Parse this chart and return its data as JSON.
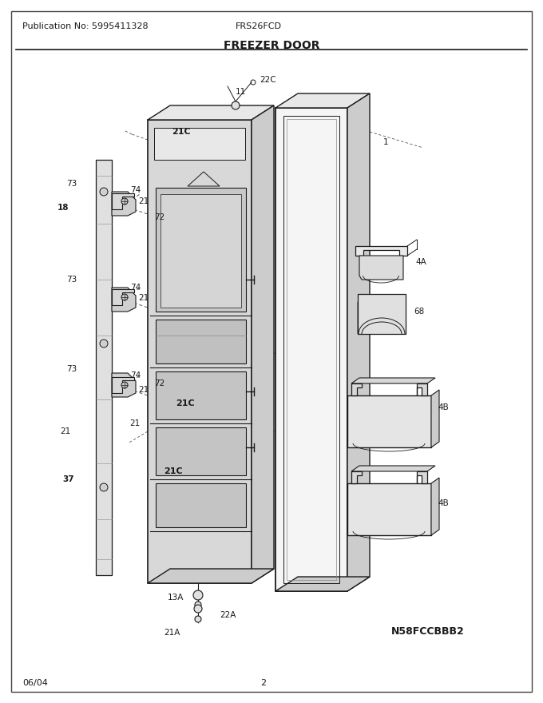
{
  "title": "FREEZER DOOR",
  "pub_no": "Publication No: 5995411328",
  "model": "FRS26FCD",
  "date": "06/04",
  "page": "2",
  "diagram_id": "N58FCCBBB2",
  "bg_color": "#ffffff",
  "lc": "#1a1a1a",
  "gray_light": "#e8e8e8",
  "gray_mid": "#cccccc",
  "gray_dark": "#aaaaaa",
  "gray_fill": "#d8d8d8",
  "white_fill": "#f5f5f5"
}
